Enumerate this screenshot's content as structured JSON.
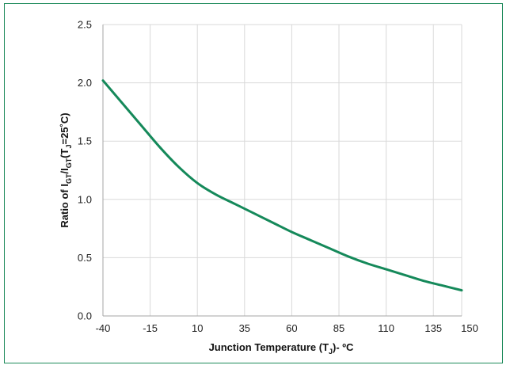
{
  "chart_data": {
    "type": "line",
    "xlabel": {
      "main": "Junction Temperature (T",
      "sub": "J",
      "tail": ")- ºC"
    },
    "ylabel": {
      "p1": "Ratio of I",
      "s1": "GT",
      "p2": "/I",
      "s2": "GT",
      "p3": "(T",
      "s3": "J",
      "p4": "=25˚C)"
    },
    "xlim": [
      -40,
      150
    ],
    "ylim": [
      0,
      2.5
    ],
    "x_ticks": [
      -40,
      -15,
      10,
      35,
      60,
      85,
      110,
      135,
      150
    ],
    "x_tick_labels": [
      "-40",
      "-15",
      "10",
      "35",
      "60",
      "85",
      "110",
      "135",
      "150"
    ],
    "y_ticks": [
      0,
      0.5,
      1,
      1.5,
      2,
      2.5
    ],
    "y_tick_labels": [
      "0.0",
      "0.5",
      "1.0",
      "1.5",
      "2.0",
      "2.5"
    ],
    "grid": true,
    "line_color": "#15895a",
    "series": [
      {
        "x": [
          -40,
          -30,
          -20,
          -10,
          0,
          10,
          20,
          30,
          40,
          50,
          60,
          70,
          80,
          90,
          100,
          110,
          120,
          130,
          140,
          150
        ],
        "y": [
          2.02,
          1.83,
          1.64,
          1.45,
          1.28,
          1.14,
          1.04,
          0.96,
          0.88,
          0.8,
          0.72,
          0.65,
          0.58,
          0.51,
          0.45,
          0.4,
          0.35,
          0.3,
          0.26,
          0.22
        ]
      }
    ]
  }
}
